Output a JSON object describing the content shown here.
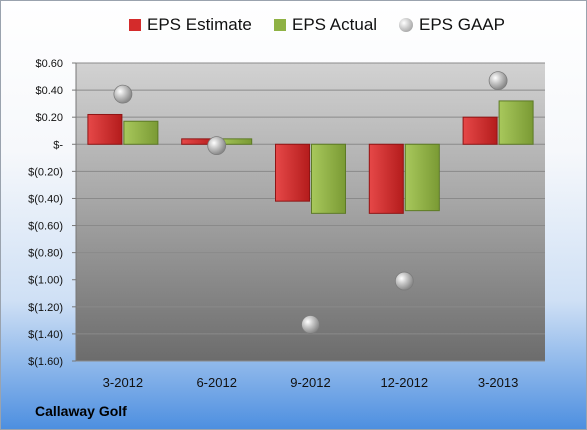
{
  "chart_data": {
    "type": "bar",
    "categories": [
      "3-2012",
      "6-2012",
      "9-2012",
      "12-2012",
      "3-2013"
    ],
    "series": [
      {
        "name": "EPS Estimate",
        "kind": "bar",
        "values": [
          0.22,
          0.04,
          -0.42,
          -0.51,
          0.2
        ]
      },
      {
        "name": "EPS Actual",
        "kind": "bar",
        "values": [
          0.17,
          0.04,
          -0.51,
          -0.49,
          0.32
        ]
      },
      {
        "name": "EPS GAAP",
        "kind": "marker",
        "values": [
          0.37,
          -0.01,
          -1.33,
          -1.01,
          0.47
        ]
      }
    ],
    "y_ticks": [
      "$0.60",
      "$0.40",
      "$0.20",
      "$-",
      "$(0.20)",
      "$(0.40)",
      "$(0.60)",
      "$(0.80)",
      "$(1.00)",
      "$(1.20)",
      "$(1.40)",
      "$(1.60)"
    ],
    "ylim": [
      -1.6,
      0.6
    ],
    "y_step": 0.2,
    "grid": true,
    "legend_position": "top"
  },
  "colors": {
    "estimate": "#d42b2b",
    "actual": "#8fb244",
    "gaap": "#b5b5b5"
  },
  "footer": {
    "company": "Callaway Golf"
  }
}
